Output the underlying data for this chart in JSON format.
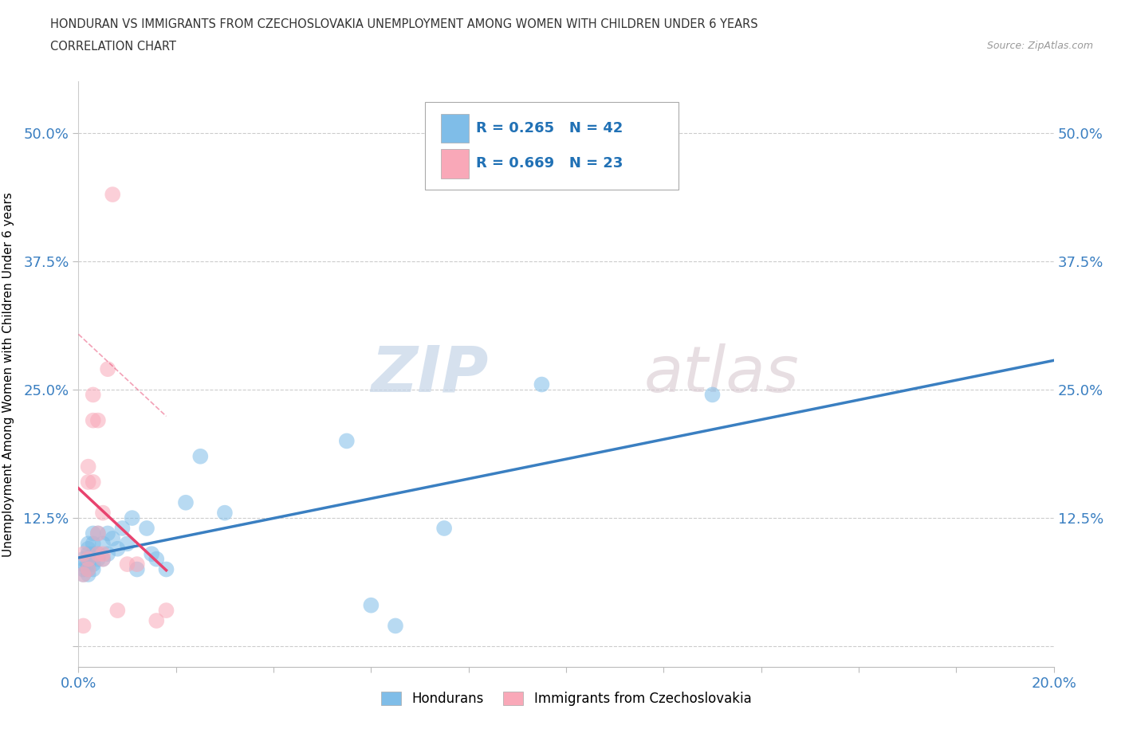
{
  "title_line1": "HONDURAN VS IMMIGRANTS FROM CZECHOSLOVAKIA UNEMPLOYMENT AMONG WOMEN WITH CHILDREN UNDER 6 YEARS",
  "title_line2": "CORRELATION CHART",
  "source": "Source: ZipAtlas.com",
  "ylabel": "Unemployment Among Women with Children Under 6 years",
  "xlim": [
    0.0,
    0.2
  ],
  "ylim": [
    -0.02,
    0.55
  ],
  "xticks": [
    0.0,
    0.02,
    0.04,
    0.06,
    0.08,
    0.1,
    0.12,
    0.14,
    0.16,
    0.18,
    0.2
  ],
  "ytick_positions": [
    0.0,
    0.125,
    0.25,
    0.375,
    0.5
  ],
  "ytick_labels": [
    "",
    "12.5%",
    "25.0%",
    "37.5%",
    "50.0%"
  ],
  "xtick_labels": [
    "0.0%",
    "",
    "",
    "",
    "",
    "",
    "",
    "",
    "",
    "",
    "20.0%"
  ],
  "honduran_color": "#7fbde8",
  "czech_color": "#f9a8b8",
  "trend_honduran_color": "#3a7fc1",
  "trend_czech_color": "#e8436e",
  "R_honduran": 0.265,
  "N_honduran": 42,
  "R_czech": 0.669,
  "N_czech": 23,
  "watermark_zip": "ZIP",
  "watermark_atlas": "atlas",
  "honduran_x": [
    0.001,
    0.001,
    0.001,
    0.001,
    0.002,
    0.002,
    0.002,
    0.002,
    0.002,
    0.002,
    0.002,
    0.003,
    0.003,
    0.003,
    0.003,
    0.003,
    0.004,
    0.004,
    0.004,
    0.005,
    0.005,
    0.006,
    0.006,
    0.007,
    0.008,
    0.009,
    0.01,
    0.011,
    0.012,
    0.014,
    0.015,
    0.016,
    0.018,
    0.022,
    0.025,
    0.03,
    0.055,
    0.06,
    0.065,
    0.075,
    0.095,
    0.13
  ],
  "honduran_y": [
    0.07,
    0.075,
    0.08,
    0.085,
    0.07,
    0.075,
    0.08,
    0.085,
    0.09,
    0.095,
    0.1,
    0.075,
    0.08,
    0.09,
    0.1,
    0.11,
    0.085,
    0.09,
    0.11,
    0.085,
    0.1,
    0.09,
    0.11,
    0.105,
    0.095,
    0.115,
    0.1,
    0.125,
    0.075,
    0.115,
    0.09,
    0.085,
    0.075,
    0.14,
    0.185,
    0.13,
    0.2,
    0.04,
    0.02,
    0.115,
    0.255,
    0.245
  ],
  "czech_x": [
    0.001,
    0.001,
    0.001,
    0.002,
    0.002,
    0.002,
    0.002,
    0.003,
    0.003,
    0.003,
    0.004,
    0.004,
    0.004,
    0.005,
    0.005,
    0.005,
    0.006,
    0.007,
    0.008,
    0.01,
    0.012,
    0.016,
    0.018
  ],
  "czech_y": [
    0.02,
    0.07,
    0.09,
    0.075,
    0.085,
    0.16,
    0.175,
    0.16,
    0.22,
    0.245,
    0.22,
    0.09,
    0.11,
    0.085,
    0.09,
    0.13,
    0.27,
    0.44,
    0.035,
    0.08,
    0.08,
    0.025,
    0.035
  ]
}
